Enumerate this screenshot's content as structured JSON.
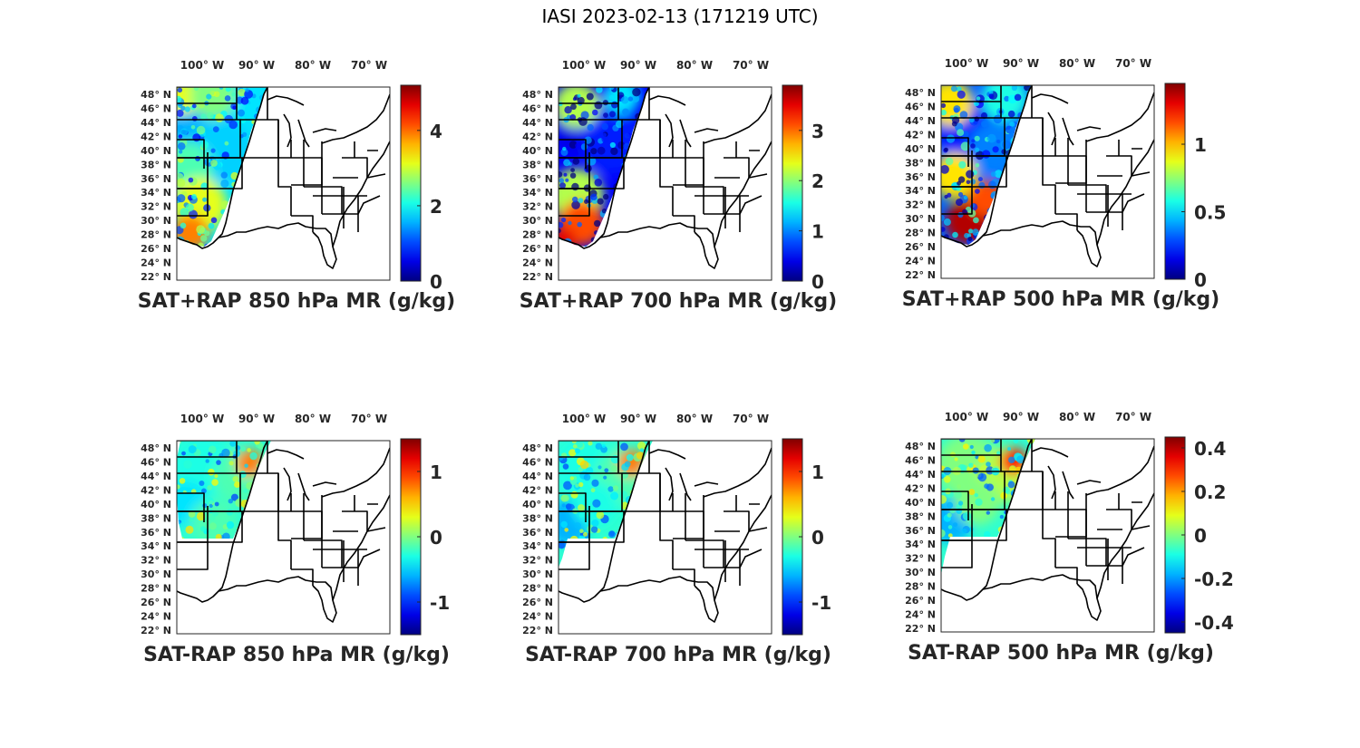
{
  "figure": {
    "title": "IASI 2023-02-13 (171219 UTC)"
  },
  "map": {
    "lon_labels": [
      {
        "deg": "100",
        "hem": "W"
      },
      {
        "deg": "90",
        "hem": "W"
      },
      {
        "deg": "80",
        "hem": "W"
      },
      {
        "deg": "70",
        "hem": "W"
      }
    ],
    "lat_labels": [
      {
        "deg": "48",
        "hem": "N"
      },
      {
        "deg": "46",
        "hem": "N"
      },
      {
        "deg": "44",
        "hem": "N"
      },
      {
        "deg": "42",
        "hem": "N"
      },
      {
        "deg": "40",
        "hem": "N"
      },
      {
        "deg": "38",
        "hem": "N"
      },
      {
        "deg": "36",
        "hem": "N"
      },
      {
        "deg": "34",
        "hem": "N"
      },
      {
        "deg": "32",
        "hem": "N"
      },
      {
        "deg": "30",
        "hem": "N"
      },
      {
        "deg": "28",
        "hem": "N"
      },
      {
        "deg": "26",
        "hem": "N"
      },
      {
        "deg": "24",
        "hem": "N"
      },
      {
        "deg": "22",
        "hem": "N"
      }
    ],
    "degree_symbol": "°"
  },
  "chart_data": [
    {
      "type": "heatmap",
      "title": "SAT+RAP 850 hPa MR (g/kg)",
      "colormap": "jet",
      "clim": [
        0,
        5.2
      ],
      "colorbar_ticks": [
        "0",
        "2",
        "4"
      ],
      "tick_values": [
        0,
        2,
        4
      ]
    },
    {
      "type": "heatmap",
      "title": "SAT+RAP 700 hPa MR (g/kg)",
      "colormap": "jet",
      "clim": [
        0,
        3.9
      ],
      "colorbar_ticks": [
        "0",
        "1",
        "2",
        "3"
      ],
      "tick_values": [
        0,
        1,
        2,
        3
      ]
    },
    {
      "type": "heatmap",
      "title": "SAT+RAP 500 hPa MR (g/kg)",
      "colormap": "jet",
      "clim": [
        0,
        1.45
      ],
      "colorbar_ticks": [
        "0",
        "0.5",
        "1"
      ],
      "tick_values": [
        0,
        0.5,
        1
      ]
    },
    {
      "type": "heatmap",
      "title": "SAT-RAP 850 hPa MR (g/kg)",
      "colormap": "jet",
      "clim": [
        -1.5,
        1.5
      ],
      "colorbar_ticks": [
        "-1",
        "0",
        "1"
      ],
      "tick_values": [
        -1,
        0,
        1
      ]
    },
    {
      "type": "heatmap",
      "title": "SAT-RAP 700 hPa MR (g/kg)",
      "colormap": "jet",
      "clim": [
        -1.5,
        1.5
      ],
      "colorbar_ticks": [
        "-1",
        "0",
        "1"
      ],
      "tick_values": [
        -1,
        0,
        1
      ]
    },
    {
      "type": "heatmap",
      "title": "SAT-RAP 500 hPa MR (g/kg)",
      "colormap": "jet",
      "clim": [
        -0.45,
        0.45
      ],
      "colorbar_ticks": [
        "-0.4",
        "-0.2",
        "0",
        "0.2",
        "0.4"
      ],
      "tick_values": [
        -0.4,
        -0.2,
        0,
        0.2,
        0.4
      ]
    }
  ]
}
